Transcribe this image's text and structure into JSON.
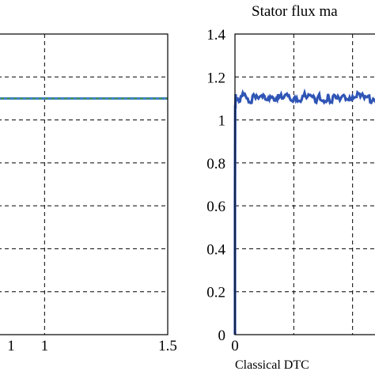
{
  "chart_data": [
    {
      "type": "line",
      "title": "",
      "xlabel": "",
      "ylabel": "",
      "xlim": [
        0,
        1.5
      ],
      "ylim": [
        0,
        1.4
      ],
      "grid": true,
      "x_ticks": [
        "1",
        "1.5"
      ],
      "series": [
        {
          "color": "#3e7fc4",
          "style": "line",
          "x": [
            0.0,
            1.5
          ],
          "y": [
            1.1,
            1.1
          ]
        },
        {
          "color": "#4a9a3a",
          "style": "dashed",
          "x": [
            0.0,
            1.5
          ],
          "y": [
            1.1,
            1.1
          ]
        }
      ]
    },
    {
      "type": "line",
      "title": "Stator flux ma",
      "caption": "Classical DTC",
      "xlabel": "",
      "ylabel": "",
      "xlim": [
        0,
        1.5
      ],
      "ylim": [
        0,
        1.4
      ],
      "grid": true,
      "y_ticks": [
        "0",
        "0.2",
        "0.4",
        "0.6",
        "0.8",
        "1",
        "1.2",
        "1.4"
      ],
      "x_ticks": [
        "0"
      ],
      "series": [
        {
          "color": "#2f55b5",
          "x": [
            0,
            0.0,
            0.002,
            0.004,
            0.006,
            0.01,
            0.02,
            0.05,
            0.1,
            0.2,
            0.3,
            0.4,
            0.5,
            0.6,
            0.7,
            0.8,
            0.9,
            1.0,
            1.1,
            1.2,
            1.3,
            1.4,
            1.5
          ],
          "y": [
            0,
            0.62,
            1.07,
            1.05,
            1.12,
            1.09,
            1.1,
            1.11,
            1.1,
            1.1,
            1.11,
            1.1,
            1.1,
            1.11,
            1.1,
            1.1,
            1.1,
            1.11,
            1.1,
            1.1,
            1.11,
            1.1,
            1.1
          ]
        }
      ]
    }
  ]
}
